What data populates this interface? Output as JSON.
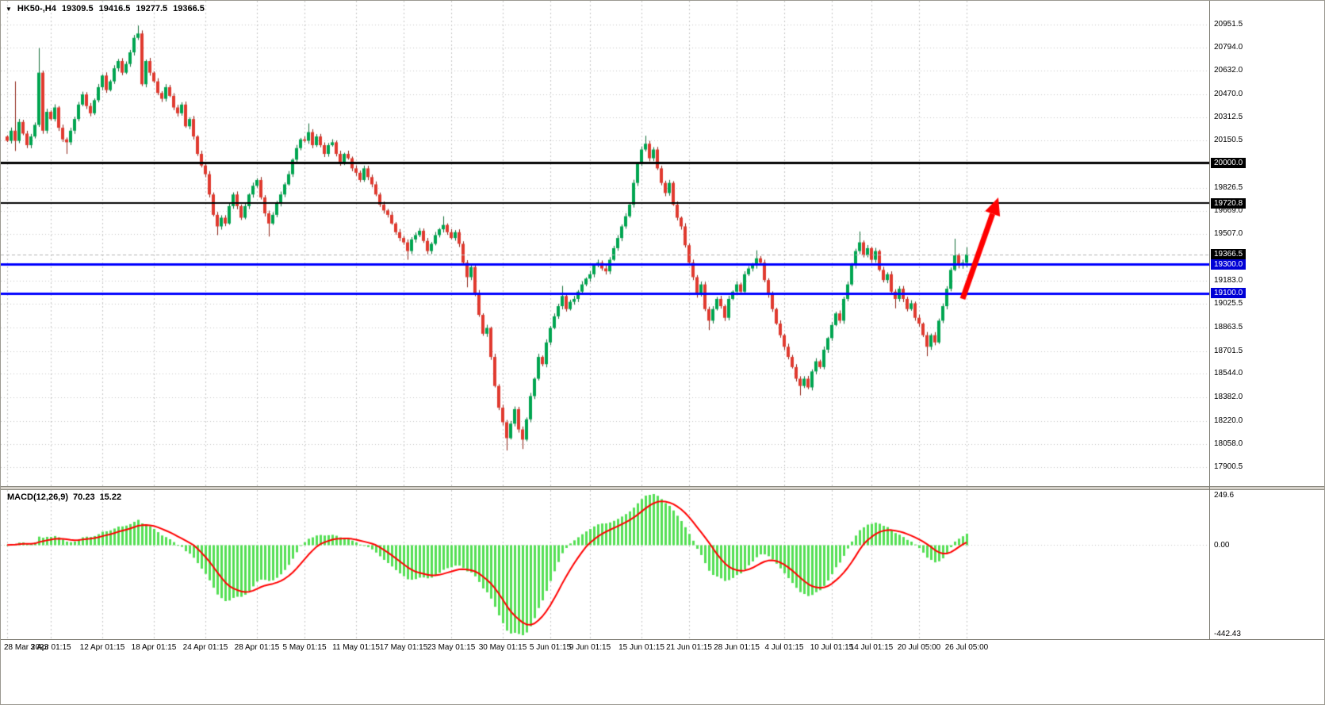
{
  "header": {
    "icon": "▼",
    "symbol_period": "HK50-,H4",
    "open": "19309.5",
    "high": "19416.5",
    "low": "19277.5",
    "close": "19366.5"
  },
  "chart_data": {
    "type": "candlestick",
    "title": "HK50-,H4",
    "symbol": "HK50-",
    "timeframe": "H4",
    "last_bar": {
      "o": 19309.5,
      "h": 19416.5,
      "l": 19277.5,
      "c": 19366.5
    },
    "current_price": 19366.5,
    "price_axis": {
      "gridline_labels": [
        "20951.5",
        "20794.0",
        "20632.0",
        "20470.0",
        "20312.5",
        "20150.5",
        "19826.5",
        "19669.0",
        "19507.0",
        "19183.0",
        "19025.5",
        "18863.5",
        "18701.5",
        "18544.0",
        "18382.0",
        "18220.0",
        "18058.0",
        "17900.5"
      ],
      "badges": [
        {
          "price": 20000.0,
          "label": "20000.0",
          "bg": "#000000"
        },
        {
          "price": 19720.8,
          "label": "19720.8",
          "bg": "#000000"
        },
        {
          "price": 19366.5,
          "label": "19366.5",
          "bg": "#000000"
        },
        {
          "price": 19300.0,
          "label": "19300.0",
          "bg": "#0000d6"
        },
        {
          "price": 19100.0,
          "label": "19100.0",
          "bg": "#0000d6"
        }
      ]
    },
    "levels": [
      {
        "price": 20000.0,
        "color": "#000000",
        "width": 3
      },
      {
        "price": 19720.8,
        "color": "#000000",
        "width": 2
      },
      {
        "price": 19300.0,
        "color": "#0000ff",
        "width": 3
      },
      {
        "price": 19100.0,
        "color": "#0000ff",
        "width": 3
      }
    ],
    "x_labels": [
      {
        "index": 0,
        "label": "28 Mar 2023"
      },
      {
        "index": 11,
        "label": "3 Apr 01:15"
      },
      {
        "index": 24,
        "label": "12 Apr 01:15"
      },
      {
        "index": 37,
        "label": "18 Apr 01:15"
      },
      {
        "index": 50,
        "label": "24 Apr 01:15"
      },
      {
        "index": 63,
        "label": "28 Apr 01:15"
      },
      {
        "index": 75,
        "label": "5 May 01:15"
      },
      {
        "index": 88,
        "label": "11 May 01:15"
      },
      {
        "index": 100,
        "label": "17 May 01:15"
      },
      {
        "index": 112,
        "label": "23 May 01:15"
      },
      {
        "index": 125,
        "label": "30 May 01:15"
      },
      {
        "index": 137,
        "label": "5 Jun 01:15"
      },
      {
        "index": 147,
        "label": "9 Jun 01:15"
      },
      {
        "index": 160,
        "label": "15 Jun 01:15"
      },
      {
        "index": 172,
        "label": "21 Jun 01:15"
      },
      {
        "index": 184,
        "label": "28 Jun 01:15"
      },
      {
        "index": 196,
        "label": "4 Jul 01:15"
      },
      {
        "index": 208,
        "label": "10 Jul 01:15"
      },
      {
        "index": 218,
        "label": "14 Jul 01:15"
      },
      {
        "index": 230,
        "label": "20 Jul 05:00"
      },
      {
        "index": 242,
        "label": "26 Jul 05:00"
      }
    ],
    "candles": {
      "closes": [
        20150,
        20220,
        20150,
        20280,
        20200,
        20120,
        20180,
        20260,
        20620,
        20220,
        20350,
        20300,
        20380,
        20240,
        20160,
        20140,
        20220,
        20300,
        20400,
        20470,
        20390,
        20340,
        20430,
        20520,
        20600,
        20500,
        20560,
        20650,
        20700,
        20620,
        20680,
        20760,
        20860,
        20890,
        20540,
        20700,
        20620,
        20560,
        20480,
        20440,
        20520,
        20460,
        20380,
        20340,
        20400,
        20250,
        20300,
        20180,
        20060,
        19980,
        19920,
        19780,
        19640,
        19560,
        19620,
        19580,
        19700,
        19780,
        19700,
        19620,
        19700,
        19780,
        19840,
        19880,
        19760,
        19650,
        19580,
        19640,
        19720,
        19780,
        19850,
        19920,
        20020,
        20100,
        20160,
        20150,
        20210,
        20120,
        20180,
        20120,
        20060,
        20120,
        20140,
        20060,
        20000,
        20060,
        20030,
        19960,
        19930,
        19880,
        19960,
        19900,
        19850,
        19780,
        19710,
        19670,
        19640,
        19580,
        19520,
        19480,
        19450,
        19390,
        19470,
        19500,
        19530,
        19460,
        19390,
        19440,
        19500,
        19540,
        19570,
        19520,
        19480,
        19520,
        19440,
        19310,
        19210,
        19280,
        19100,
        18950,
        18820,
        18860,
        18660,
        18460,
        18310,
        18210,
        18100,
        18200,
        18300,
        18160,
        18090,
        18230,
        18390,
        18510,
        18660,
        18610,
        18760,
        18860,
        18940,
        19010,
        19080,
        18990,
        19040,
        19060,
        19110,
        19160,
        19200,
        19230,
        19290,
        19310,
        19270,
        19250,
        19330,
        19410,
        19480,
        19560,
        19630,
        19710,
        19860,
        19990,
        20090,
        20130,
        20030,
        20090,
        19960,
        19860,
        19790,
        19860,
        19710,
        19620,
        19560,
        19430,
        19310,
        19210,
        19090,
        19160,
        18990,
        18910,
        18990,
        19060,
        19010,
        18930,
        19060,
        19110,
        19160,
        19110,
        19230,
        19270,
        19290,
        19340,
        19310,
        19190,
        19090,
        18990,
        18890,
        18810,
        18730,
        18660,
        18590,
        18510,
        18460,
        18510,
        18450,
        18560,
        18630,
        18590,
        18710,
        18790,
        18880,
        18960,
        18910,
        19060,
        19160,
        19290,
        19390,
        19450,
        19360,
        19410,
        19330,
        19390,
        19260,
        19190,
        19230,
        19110,
        19060,
        19130,
        19060,
        18990,
        19030,
        18930,
        18890,
        18810,
        18730,
        18810,
        18760,
        18910,
        19010,
        19130,
        19260,
        19360,
        19290,
        19309.5,
        19366.5
      ],
      "high_spikes": [
        [
          2,
          20560
        ],
        [
          8,
          20790
        ],
        [
          33,
          20945
        ],
        [
          76,
          20270
        ],
        [
          110,
          19630
        ],
        [
          140,
          19150
        ],
        [
          161,
          20185
        ],
        [
          189,
          19395
        ],
        [
          215,
          19525
        ],
        [
          239,
          19475
        ]
      ],
      "low_spikes": [
        [
          2,
          20080
        ],
        [
          15,
          20060
        ],
        [
          53,
          19500
        ],
        [
          66,
          19490
        ],
        [
          101,
          19330
        ],
        [
          116,
          19140
        ],
        [
          126,
          18015
        ],
        [
          130,
          18025
        ],
        [
          177,
          18845
        ],
        [
          200,
          18395
        ],
        [
          224,
          18995
        ],
        [
          232,
          18665
        ]
      ]
    },
    "indicator": {
      "name": "MACD",
      "params": [
        12,
        26,
        9
      ],
      "label": "MACD(12,26,9)",
      "value_main": "70.23",
      "value_signal": "15.22",
      "axis_max": 249.6,
      "axis_min": -442.43,
      "axis_labels": [
        "249.6",
        "0.00",
        "-442.43"
      ]
    },
    "arrow": {
      "from_index": 241,
      "from_price": 19060,
      "to_index": 250,
      "to_price": 19760,
      "color": "#ff0000"
    },
    "colors": {
      "bull": "#00a550",
      "bear": "#e03a2f",
      "bull_wick": "#156f3c",
      "bear_wick": "#8f2318",
      "grid": "#c6c6c6",
      "black_line": "#000000",
      "blue_line": "#0000ff",
      "current_price_line": "#b4b4b4",
      "macd_hist": "#55df55",
      "macd_signal": "#ff0000",
      "arrow": "#ff0000"
    }
  }
}
